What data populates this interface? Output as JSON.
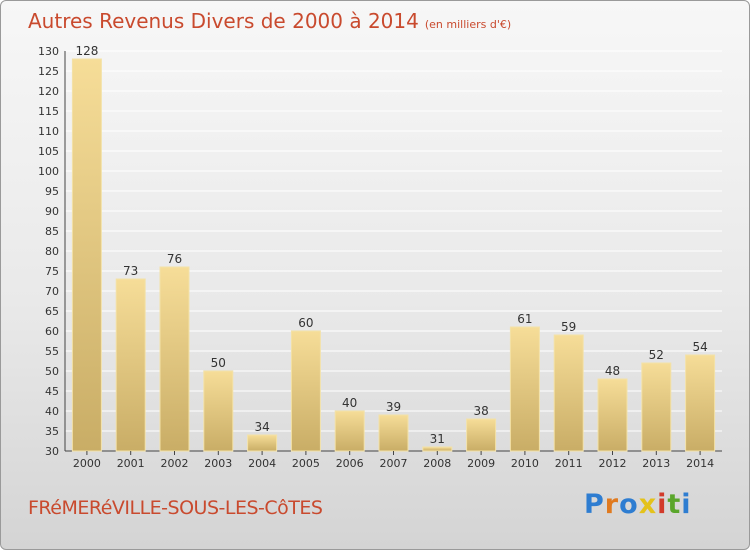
{
  "header": {
    "title": "Autres Revenus Divers de 2000 à 2014",
    "unit": "(en milliers d'€)"
  },
  "footer": {
    "commune": "FRéMERéVILLE-SOUS-LES-CôTES",
    "logo_letters": [
      "P",
      "r",
      "o",
      "x",
      "i",
      "t",
      "i"
    ]
  },
  "colors": {
    "title": "#c94a2e",
    "bar_light": "#f6dd98",
    "bar_dark": "#c9ad66",
    "grid": "#ffffff"
  },
  "chart_data": {
    "type": "bar",
    "title": "Autres Revenus Divers de 2000 à 2014",
    "subtitle": "(en milliers d'€)",
    "xlabel": "",
    "ylabel": "",
    "categories": [
      "2000",
      "2001",
      "2002",
      "2003",
      "2004",
      "2005",
      "2006",
      "2007",
      "2008",
      "2009",
      "2010",
      "2011",
      "2012",
      "2013",
      "2014"
    ],
    "values": [
      128,
      73,
      76,
      50,
      34,
      60,
      40,
      39,
      31,
      38,
      61,
      59,
      48,
      52,
      54
    ],
    "ylim": [
      30,
      130
    ],
    "yticks": [
      30,
      35,
      40,
      45,
      50,
      55,
      60,
      65,
      70,
      75,
      80,
      85,
      90,
      95,
      100,
      105,
      110,
      115,
      120,
      125,
      130
    ],
    "grid": true,
    "legend": "none"
  }
}
